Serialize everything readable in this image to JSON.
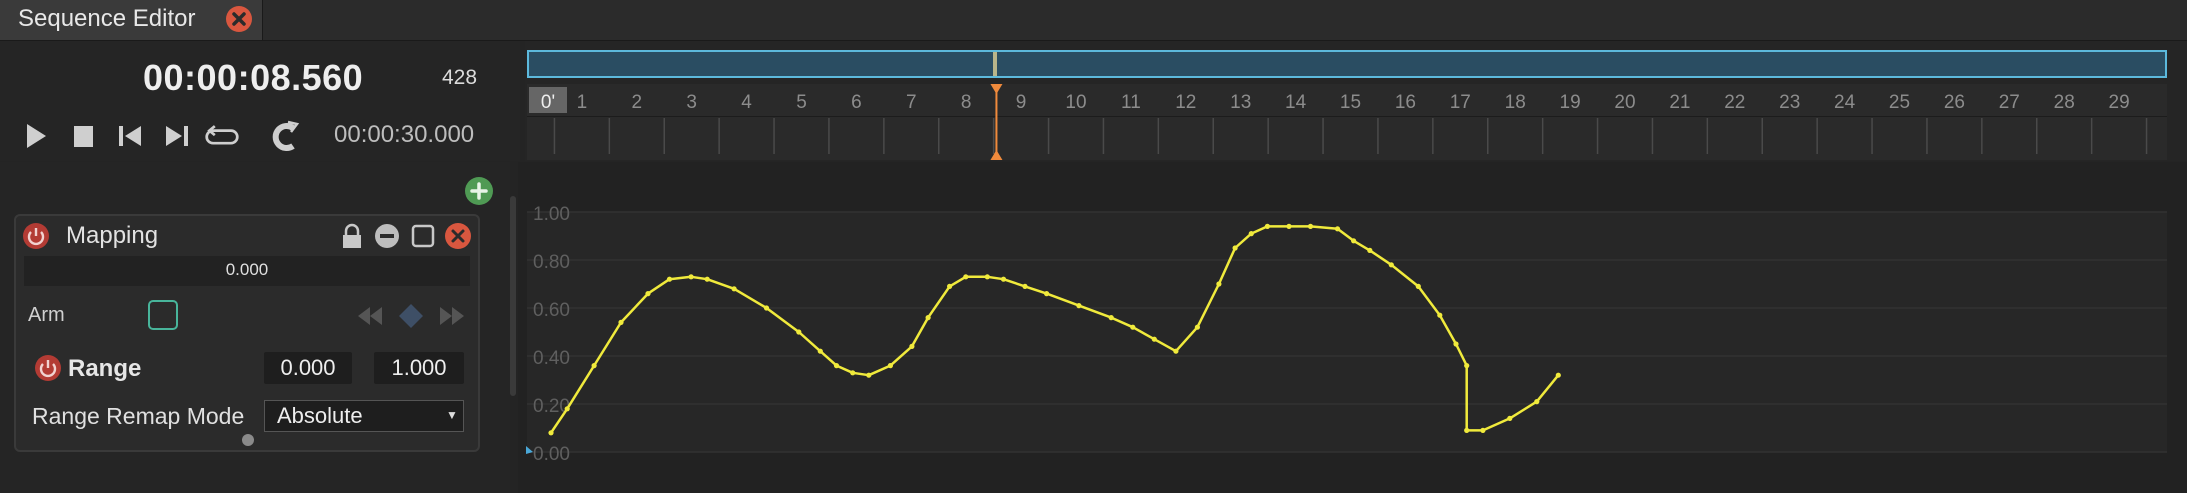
{
  "tab": {
    "title": "Sequence Editor"
  },
  "transport": {
    "timecode": "00:00:08.560",
    "frame": "428",
    "total_time": "00:00:30.000",
    "buttons": [
      "play-icon",
      "stop-icon",
      "previous-icon",
      "next-icon",
      "loop-icon",
      "snap-magnet-icon"
    ]
  },
  "timeline": {
    "start_label": "0'",
    "ticks": [
      "1",
      "2",
      "3",
      "4",
      "5",
      "6",
      "7",
      "8",
      "9",
      "10",
      "11",
      "12",
      "13",
      "14",
      "15",
      "16",
      "17",
      "18",
      "19",
      "20",
      "21",
      "22",
      "23",
      "24",
      "25",
      "26",
      "27",
      "28",
      "29"
    ],
    "playhead_color": "#f08a3c",
    "current_time_seconds": 8.56
  },
  "layer": {
    "name": "Mapping",
    "value": "0.000",
    "arm_label": "Arm",
    "range_label": "Range",
    "range_min": "0.000",
    "range_max": "1.000",
    "remap_mode_label": "Range Remap Mode",
    "remap_mode_value": "Absolute"
  },
  "chart_data": {
    "type": "line",
    "y_ticks": [
      "0.00",
      "0.20",
      "0.40",
      "0.60",
      "0.80",
      "1.00"
    ],
    "ylim": [
      0,
      1
    ],
    "xlim": [
      0,
      30
    ],
    "curve_color": "#f0ea3c",
    "series": [
      {
        "x": [
          0.0,
          0.3,
          0.8,
          1.3,
          1.8,
          2.2,
          2.6,
          2.9,
          3.4,
          4.0,
          4.6,
          5.0,
          5.3,
          5.6,
          5.9,
          6.3,
          6.7,
          7.0,
          7.4,
          7.7,
          8.1,
          8.4,
          8.8,
          9.2,
          9.8,
          10.4,
          10.8,
          11.2,
          11.6,
          12.0,
          12.4,
          12.7,
          13.0,
          13.3,
          13.7,
          14.1,
          14.6,
          14.9,
          15.2,
          15.6,
          16.1,
          16.5,
          16.8,
          17.0,
          17.0,
          17.3,
          17.8,
          18.3,
          18.7
        ],
        "y": [
          0.08,
          0.18,
          0.36,
          0.54,
          0.66,
          0.72,
          0.73,
          0.72,
          0.68,
          0.6,
          0.5,
          0.42,
          0.36,
          0.33,
          0.32,
          0.36,
          0.44,
          0.56,
          0.69,
          0.73,
          0.73,
          0.72,
          0.69,
          0.66,
          0.61,
          0.56,
          0.52,
          0.47,
          0.42,
          0.52,
          0.7,
          0.85,
          0.91,
          0.94,
          0.94,
          0.94,
          0.93,
          0.88,
          0.84,
          0.78,
          0.69,
          0.57,
          0.45,
          0.36,
          0.09,
          0.09,
          0.14,
          0.21,
          0.32
        ]
      }
    ]
  }
}
